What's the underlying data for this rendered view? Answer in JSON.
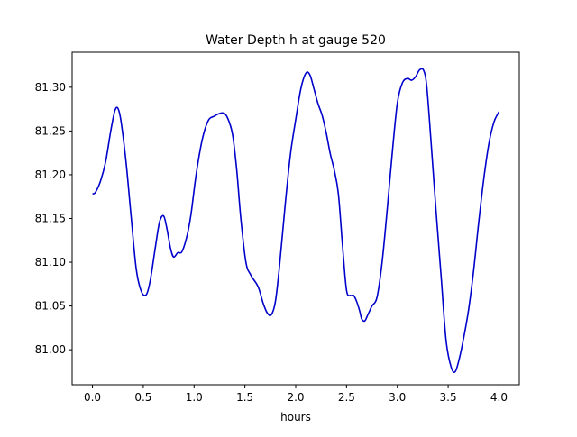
{
  "chart_data": {
    "type": "line",
    "title": "Water Depth h at gauge 520",
    "xlabel": "hours",
    "ylabel": "",
    "xlim": [
      -0.2,
      4.2
    ],
    "ylim": [
      80.96,
      81.34
    ],
    "xticks": [
      0.0,
      0.5,
      1.0,
      1.5,
      2.0,
      2.5,
      3.0,
      3.5,
      4.0
    ],
    "xtick_labels": [
      "0.0",
      "0.5",
      "1.0",
      "1.5",
      "2.0",
      "2.5",
      "3.0",
      "3.5",
      "4.0"
    ],
    "yticks": [
      81.0,
      81.05,
      81.1,
      81.15,
      81.2,
      81.25,
      81.3
    ],
    "ytick_labels": [
      "81.00",
      "81.05",
      "81.10",
      "81.15",
      "81.20",
      "81.25",
      "81.30"
    ],
    "grid": false,
    "series": [
      {
        "color": "#0000cc",
        "x": [
          0.0,
          0.03,
          0.08,
          0.13,
          0.18,
          0.22,
          0.25,
          0.28,
          0.33,
          0.38,
          0.43,
          0.48,
          0.53,
          0.57,
          0.62,
          0.66,
          0.7,
          0.73,
          0.77,
          0.8,
          0.84,
          0.88,
          0.93,
          0.97,
          1.02,
          1.08,
          1.14,
          1.2,
          1.25,
          1.3,
          1.34,
          1.38,
          1.42,
          1.46,
          1.51,
          1.56,
          1.63,
          1.68,
          1.72,
          1.76,
          1.8,
          1.84,
          1.9,
          1.95,
          2.0,
          2.05,
          2.1,
          2.14,
          2.18,
          2.22,
          2.26,
          2.3,
          2.34,
          2.38,
          2.42,
          2.46,
          2.5,
          2.54,
          2.57,
          2.6,
          2.63,
          2.65,
          2.68,
          2.71,
          2.75,
          2.8,
          2.85,
          2.9,
          2.95,
          3.0,
          3.05,
          3.1,
          3.14,
          3.18,
          3.22,
          3.26,
          3.29,
          3.33,
          3.38,
          3.43,
          3.48,
          3.53,
          3.57,
          3.61,
          3.65,
          3.7,
          3.75,
          3.8,
          3.85,
          3.9,
          3.95,
          4.0
        ],
        "values": [
          81.178,
          81.18,
          81.193,
          81.215,
          81.25,
          81.273,
          81.276,
          81.262,
          81.215,
          81.153,
          81.093,
          81.067,
          81.063,
          81.08,
          81.118,
          81.146,
          81.153,
          81.14,
          81.115,
          81.106,
          81.111,
          81.112,
          81.13,
          81.155,
          81.2,
          81.24,
          81.262,
          81.267,
          81.27,
          81.27,
          81.262,
          81.245,
          81.205,
          81.15,
          81.1,
          81.085,
          81.072,
          81.053,
          81.042,
          81.04,
          81.055,
          81.095,
          81.17,
          81.225,
          81.263,
          81.298,
          81.316,
          81.314,
          81.298,
          81.281,
          81.268,
          81.248,
          81.224,
          81.205,
          81.178,
          81.12,
          81.068,
          81.062,
          81.062,
          81.055,
          81.044,
          81.035,
          81.033,
          81.04,
          81.05,
          81.06,
          81.1,
          81.16,
          81.225,
          81.282,
          81.305,
          81.31,
          81.308,
          81.312,
          81.32,
          81.319,
          81.3,
          81.24,
          81.16,
          81.085,
          81.01,
          80.98,
          80.975,
          80.99,
          81.012,
          81.045,
          81.09,
          81.145,
          81.195,
          81.235,
          81.26,
          81.272
        ]
      }
    ]
  }
}
